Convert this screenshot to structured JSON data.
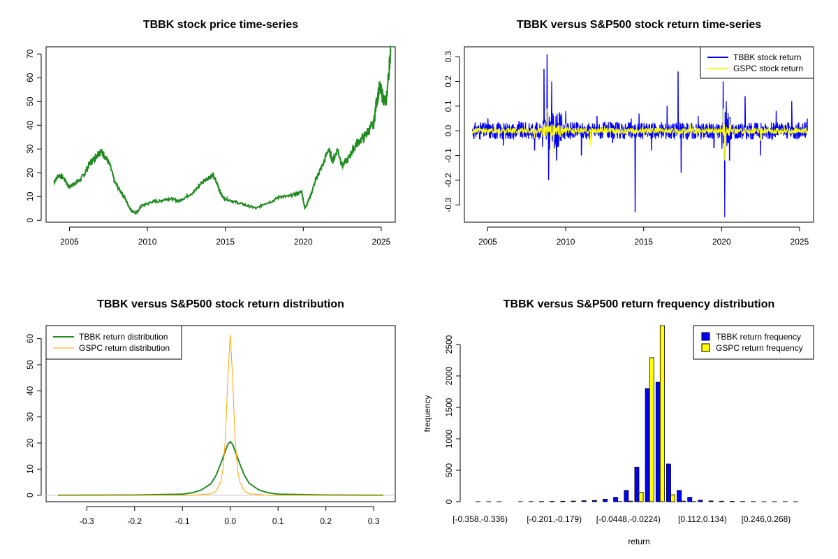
{
  "colors": {
    "price_line": "#228B22",
    "tbbk_return": "#0000FF",
    "gspc_return": "#FFFF00",
    "tbbk_density": "#228B22",
    "gspc_density": "#FFA500"
  },
  "chart_data": [
    {
      "type": "line",
      "title": "TBBK stock price time-series",
      "xlabel": "",
      "ylabel": "",
      "xlim": [
        2003.5,
        2025.9
      ],
      "ylim": [
        -0.8,
        73
      ],
      "xticks": [
        "2005",
        "2010",
        "2015",
        "2020",
        "2025"
      ],
      "yticks": [
        "0",
        "10",
        "20",
        "30",
        "40",
        "50",
        "60",
        "70"
      ],
      "series": [
        {
          "color": "#228B22",
          "x": [
            2004.0,
            2004.3,
            2004.6,
            2005.0,
            2005.4,
            2005.7,
            2006.0,
            2006.3,
            2006.6,
            2006.8,
            2007.0,
            2007.3,
            2007.6,
            2007.9,
            2008.2,
            2008.5,
            2008.8,
            2009.0,
            2009.3,
            2009.6,
            2010.0,
            2010.4,
            2010.8,
            2011.2,
            2011.6,
            2012.0,
            2012.5,
            2013.0,
            2013.5,
            2013.9,
            2014.2,
            2014.5,
            2014.8,
            2015.0,
            2015.5,
            2016.0,
            2016.5,
            2017.0,
            2017.5,
            2018.0,
            2018.5,
            2019.0,
            2019.5,
            2019.9,
            2020.1,
            2020.3,
            2020.5,
            2020.8,
            2021.0,
            2021.3,
            2021.6,
            2021.9,
            2022.2,
            2022.5,
            2022.9,
            2023.2,
            2023.5,
            2023.9,
            2024.2,
            2024.5,
            2024.7,
            2024.9,
            2025.1,
            2025.3,
            2025.5,
            2025.6
          ],
          "values": [
            16,
            19,
            18,
            14,
            16,
            17,
            20,
            24,
            26,
            28,
            29,
            27,
            23,
            16,
            13,
            10,
            6,
            4,
            3,
            6,
            7,
            8,
            8,
            9,
            9,
            8,
            10,
            12,
            16,
            18,
            19,
            15,
            10,
            9,
            8,
            7,
            6,
            5,
            7,
            8,
            10,
            10,
            11,
            12,
            5,
            8,
            11,
            17,
            20,
            24,
            30,
            25,
            30,
            23,
            26,
            30,
            33,
            35,
            38,
            40,
            50,
            56,
            52,
            49,
            63,
            72
          ]
        }
      ]
    },
    {
      "type": "line",
      "title": "TBBK versus S&P500 stock return time-series",
      "xlabel": "",
      "ylabel": "",
      "xlim": [
        2003.5,
        2025.9
      ],
      "ylim": [
        -0.37,
        0.34
      ],
      "xticks": [
        "2005",
        "2010",
        "2015",
        "2020",
        "2025"
      ],
      "yticks": [
        "-0.3",
        "-0.2",
        "-0.1",
        "0.0",
        "0.1",
        "0.2",
        "0.3"
      ],
      "legend_position": "top-right",
      "series": [
        {
          "name": "TBBK stock return",
          "color": "#0000FF",
          "x": [
            2004.0,
            2005.0,
            2006.0,
            2007.0,
            2008.0,
            2008.6,
            2008.8,
            2008.9,
            2009.1,
            2009.4,
            2010.0,
            2011.0,
            2012.0,
            2013.0,
            2014.2,
            2014.45,
            2014.7,
            2015.5,
            2016.5,
            2017.2,
            2017.4,
            2018.5,
            2019.5,
            2020.1,
            2020.2,
            2020.3,
            2020.5,
            2021.5,
            2022.5,
            2023.5,
            2024.5,
            2025.5
          ],
          "values": [
            0.0,
            0.05,
            -0.06,
            0.04,
            -0.08,
            0.25,
            0.31,
            -0.2,
            0.2,
            -0.12,
            0.08,
            -0.1,
            0.06,
            -0.05,
            0.05,
            -0.33,
            0.07,
            -0.08,
            0.1,
            0.24,
            -0.17,
            0.06,
            -0.07,
            0.2,
            -0.35,
            0.12,
            -0.12,
            0.14,
            -0.1,
            0.08,
            0.12,
            0.05
          ]
        },
        {
          "name": "GSPC stock return",
          "color": "#FFFF00",
          "x": [
            2004.0,
            2006.0,
            2008.0,
            2008.8,
            2009.2,
            2010.0,
            2011.6,
            2012.5,
            2015.0,
            2018.0,
            2020.1,
            2020.2,
            2020.5,
            2022.5,
            2024.0,
            2025.5
          ],
          "values": [
            0.0,
            0.01,
            -0.03,
            0.09,
            -0.09,
            0.03,
            -0.06,
            0.02,
            -0.03,
            0.03,
            0.09,
            -0.12,
            0.05,
            -0.04,
            0.02,
            0.0
          ]
        }
      ]
    },
    {
      "type": "line",
      "title": "TBBK versus S&P500 stock return distribution",
      "xlabel": "",
      "ylabel": "",
      "xlim": [
        -0.385,
        0.345
      ],
      "ylim": [
        -2.5,
        65
      ],
      "xticks": [
        "-0.3",
        "-0.2",
        "-0.1",
        "0.0",
        "0.1",
        "0.2",
        "0.3"
      ],
      "yticks": [
        "0",
        "10",
        "20",
        "30",
        "40",
        "50",
        "60"
      ],
      "legend_position": "top-left",
      "series": [
        {
          "name": "TBBK return distribution",
          "color": "#228B22",
          "x": [
            -0.36,
            -0.2,
            -0.1,
            -0.08,
            -0.06,
            -0.04,
            -0.03,
            -0.02,
            -0.01,
            -0.005,
            0.0,
            0.005,
            0.01,
            0.02,
            0.03,
            0.04,
            0.06,
            0.08,
            0.1,
            0.2,
            0.32
          ],
          "values": [
            0,
            0.05,
            0.4,
            0.9,
            2.0,
            4.5,
            7.5,
            12,
            17,
            19.5,
            20.5,
            19.5,
            17,
            12,
            7.5,
            4.5,
            2.0,
            0.9,
            0.4,
            0.05,
            0
          ]
        },
        {
          "name": "GSPC return distribution",
          "color": "#FFA500",
          "x": [
            -0.36,
            -0.08,
            -0.04,
            -0.03,
            -0.02,
            -0.015,
            -0.01,
            -0.005,
            0.0,
            0.005,
            0.01,
            0.015,
            0.02,
            0.03,
            0.04,
            0.08,
            0.32
          ],
          "values": [
            0,
            0,
            0.5,
            1.5,
            5,
            10,
            22,
            45,
            61.5,
            45,
            22,
            10,
            5,
            1.5,
            0.5,
            0,
            0
          ]
        }
      ]
    },
    {
      "type": "bar",
      "title": "TBBK versus S&P500 return frequency distribution",
      "xlabel": "return",
      "ylabel": "frequency",
      "ylim": [
        0,
        2800
      ],
      "yticks": [
        "0",
        "500",
        "1000",
        "1500",
        "2000",
        "2500"
      ],
      "tick_labels": [
        "[-0.358,-0.336)",
        "[-0.201,-0.179)",
        "[-0.0448,-0.0224)",
        "[0.112,0.134)",
        "[0.246,0.268)"
      ],
      "tick_label_indices": [
        0,
        7,
        14,
        21,
        27
      ],
      "legend_position": "top-right",
      "series": [
        {
          "name": "TBBK return frequency",
          "color": "#0000FF",
          "values": [
            1,
            1,
            1,
            0,
            1,
            2,
            3,
            5,
            8,
            10,
            15,
            20,
            40,
            70,
            180,
            550,
            1800,
            1900,
            600,
            180,
            70,
            25,
            12,
            8,
            5,
            3,
            2,
            1,
            1,
            1,
            1
          ]
        },
        {
          "name": "GSPC return frequency",
          "color": "#FFFF00",
          "values": [
            0,
            0,
            0,
            0,
            0,
            0,
            0,
            0,
            0,
            0,
            0,
            0,
            0,
            2,
            10,
            150,
            2290,
            2800,
            110,
            10,
            2,
            0,
            0,
            0,
            0,
            0,
            0,
            0,
            0,
            0,
            0
          ]
        }
      ]
    }
  ]
}
